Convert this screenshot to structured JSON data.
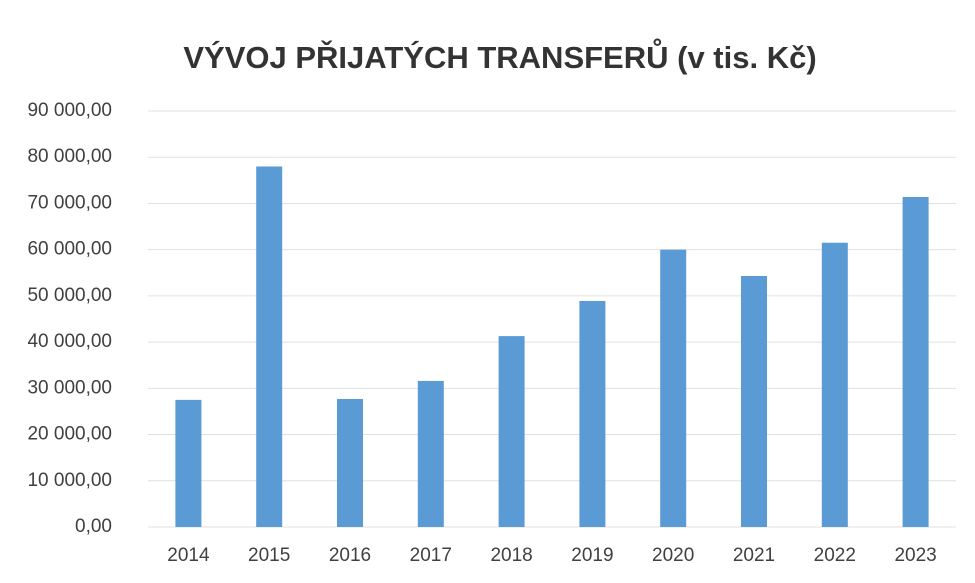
{
  "chart_data": {
    "type": "bar",
    "title": "VÝVOJ PŘIJATÝCH TRANSFERŮ (v tis. Kč)",
    "categories": [
      "2014",
      "2015",
      "2016",
      "2017",
      "2018",
      "2019",
      "2020",
      "2021",
      "2022",
      "2023"
    ],
    "values": [
      27500,
      78000,
      27700,
      31600,
      41300,
      48900,
      60000,
      54300,
      61500,
      71400
    ],
    "color": "#5b9bd5",
    "ylim": [
      0,
      90000
    ],
    "yticks": [
      {
        "value": 0,
        "label": "0,00"
      },
      {
        "value": 10000,
        "label": "10 000,00"
      },
      {
        "value": 20000,
        "label": "20 000,00"
      },
      {
        "value": 30000,
        "label": "30 000,00"
      },
      {
        "value": 40000,
        "label": "40 000,00"
      },
      {
        "value": 50000,
        "label": "50 000,00"
      },
      {
        "value": 60000,
        "label": "60 000,00"
      },
      {
        "value": 70000,
        "label": "70 000,00"
      },
      {
        "value": 80000,
        "label": "80 000,00"
      },
      {
        "value": 90000,
        "label": "90 000,00"
      }
    ],
    "grid": true
  }
}
